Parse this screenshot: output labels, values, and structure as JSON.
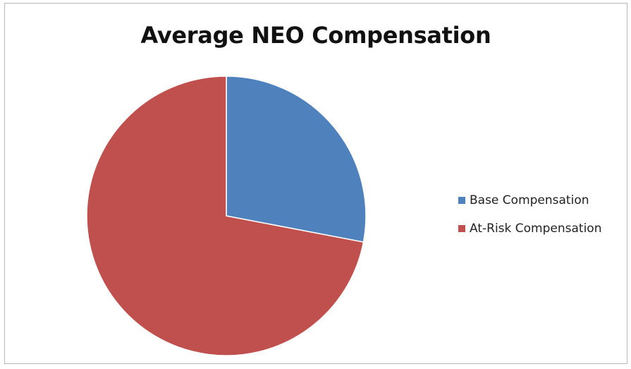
{
  "chart_data": {
    "type": "pie",
    "title": "Average NEO Compensation",
    "categories": [
      "Base Compensation",
      "At-Risk Compensation"
    ],
    "values": [
      28,
      72
    ],
    "colors": [
      "#4f81bd",
      "#c0504d"
    ],
    "legend_position": "right"
  }
}
